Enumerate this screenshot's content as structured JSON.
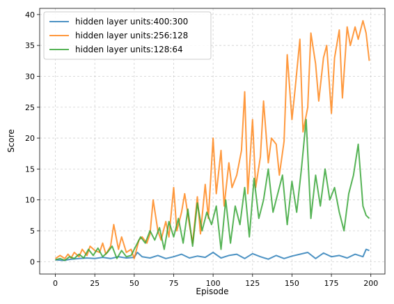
{
  "chart_data": {
    "type": "line",
    "title": "",
    "xlabel": "Episode",
    "ylabel": "Score",
    "xlim": [
      -9.95,
      208.95
    ],
    "ylim": [
      -2.0,
      41.0
    ],
    "xticks": [
      0,
      25,
      50,
      75,
      100,
      125,
      150,
      175,
      200
    ],
    "yticks": [
      0,
      5,
      10,
      15,
      20,
      25,
      30,
      35,
      40
    ],
    "grid": true,
    "legend_position": "top-left",
    "series": [
      {
        "name": "hidden layer units:400:300",
        "color": "#1f77b4",
        "x": [
          0,
          5,
          10,
          15,
          20,
          25,
          30,
          35,
          40,
          45,
          50,
          52,
          55,
          60,
          65,
          70,
          75,
          80,
          85,
          90,
          95,
          100,
          105,
          110,
          115,
          120,
          125,
          130,
          135,
          140,
          145,
          150,
          155,
          160,
          165,
          170,
          175,
          180,
          185,
          190,
          195,
          197,
          199
        ],
        "y": [
          0.3,
          0.2,
          0.4,
          0.5,
          0.6,
          0.5,
          0.7,
          0.5,
          0.8,
          0.6,
          0.7,
          1.5,
          0.8,
          0.6,
          1.0,
          0.5,
          0.8,
          1.2,
          0.6,
          0.9,
          0.7,
          1.5,
          0.6,
          1.0,
          1.2,
          0.5,
          1.3,
          0.8,
          0.4,
          1.0,
          0.5,
          0.9,
          1.2,
          1.5,
          0.5,
          1.4,
          0.8,
          1.0,
          0.6,
          1.2,
          0.8,
          2.0,
          1.8
        ]
      },
      {
        "name": "hidden layer units:256:128",
        "color": "#ff7f0e",
        "x": [
          0,
          3,
          6,
          8,
          10,
          12,
          15,
          17,
          20,
          22,
          25,
          28,
          30,
          32,
          35,
          37,
          40,
          42,
          45,
          48,
          50,
          53,
          55,
          58,
          60,
          62,
          65,
          67,
          70,
          72,
          75,
          77,
          80,
          82,
          85,
          87,
          90,
          92,
          95,
          97,
          100,
          102,
          105,
          107,
          110,
          112,
          115,
          118,
          120,
          122,
          125,
          127,
          130,
          132,
          135,
          137,
          140,
          142,
          145,
          147,
          150,
          152,
          155,
          157,
          160,
          162,
          165,
          167,
          170,
          172,
          175,
          177,
          180,
          182,
          185,
          187,
          190,
          192,
          195,
          197,
          199
        ],
        "y": [
          0.5,
          1.0,
          0.5,
          1.2,
          0.6,
          1.5,
          0.8,
          2.0,
          1.0,
          2.5,
          1.8,
          1.5,
          3.0,
          1.2,
          2.5,
          6.0,
          2.0,
          4.0,
          1.5,
          2.0,
          0.5,
          3.5,
          4.0,
          3.0,
          4.5,
          10.0,
          5.0,
          3.5,
          6.5,
          4.0,
          12.0,
          5.0,
          8.0,
          11.0,
          6.0,
          3.0,
          10.5,
          4.5,
          12.5,
          7.0,
          20.0,
          11.0,
          18.0,
          9.0,
          16.0,
          12.0,
          14.0,
          18.0,
          27.5,
          11.0,
          23.0,
          12.0,
          17.0,
          26.0,
          16.0,
          20.0,
          19.0,
          14.0,
          19.5,
          33.5,
          23.0,
          28.0,
          36.0,
          21.0,
          25.0,
          37.0,
          32.0,
          26.0,
          33.0,
          35.0,
          24.0,
          33.0,
          37.5,
          26.5,
          38.0,
          35.0,
          38.0,
          36.0,
          39.0,
          37.0,
          32.5
        ]
      },
      {
        "name": "hidden layer units:128:64",
        "color": "#2ca02c",
        "x": [
          0,
          3,
          6,
          9,
          12,
          15,
          18,
          21,
          24,
          27,
          30,
          33,
          36,
          39,
          42,
          45,
          48,
          51,
          54,
          57,
          60,
          63,
          66,
          69,
          72,
          75,
          78,
          81,
          84,
          87,
          90,
          93,
          96,
          99,
          102,
          105,
          108,
          111,
          114,
          117,
          120,
          123,
          126,
          129,
          132,
          135,
          138,
          141,
          144,
          147,
          150,
          153,
          156,
          159,
          162,
          165,
          168,
          171,
          174,
          177,
          180,
          183,
          186,
          189,
          192,
          195,
          197,
          199
        ],
        "y": [
          0.3,
          0.5,
          0.2,
          0.8,
          0.5,
          1.2,
          0.6,
          2.0,
          1.0,
          2.2,
          0.8,
          1.5,
          2.5,
          0.5,
          1.8,
          0.8,
          1.0,
          2.5,
          4.0,
          3.0,
          5.0,
          3.5,
          5.5,
          2.0,
          6.5,
          4.0,
          7.0,
          3.0,
          8.5,
          2.5,
          9.5,
          5.0,
          8.0,
          6.0,
          9.0,
          2.0,
          10.0,
          3.0,
          9.0,
          6.0,
          12.0,
          4.0,
          13.5,
          7.0,
          10.0,
          15.0,
          8.0,
          11.0,
          14.0,
          6.0,
          13.0,
          8.0,
          15.0,
          23.0,
          7.0,
          14.0,
          9.0,
          15.0,
          10.0,
          12.0,
          8.0,
          5.0,
          11.0,
          14.0,
          19.0,
          9.0,
          7.5,
          7.0
        ]
      }
    ]
  }
}
